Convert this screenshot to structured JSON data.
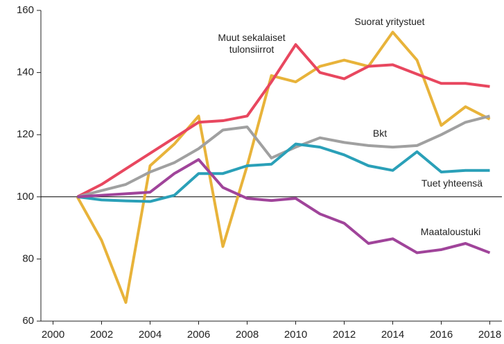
{
  "chart_data": {
    "type": "line",
    "x": [
      2001,
      2002,
      2003,
      2004,
      2005,
      2006,
      2007,
      2008,
      2009,
      2010,
      2011,
      2012,
      2013,
      2014,
      2015,
      2016,
      2017,
      2018
    ],
    "series": [
      {
        "name": "Suorat yritystuet",
        "color": "#e8b33a",
        "values": [
          100,
          86,
          66,
          110,
          117,
          126,
          84,
          110,
          139,
          137,
          142,
          144,
          142,
          153,
          144,
          123,
          129,
          125
        ]
      },
      {
        "name": "Muut sekalaiset tulonsiirrot",
        "color": "#e8475f",
        "values": [
          100,
          104,
          109,
          114,
          119,
          124,
          124.5,
          126,
          137,
          149,
          140,
          138,
          142,
          142.5,
          139.5,
          136.5,
          136.5,
          135.5
        ]
      },
      {
        "name": "Bkt",
        "color": "#a0a0a0",
        "values": [
          100,
          102,
          104,
          108,
          111,
          115.5,
          121.5,
          122.5,
          112.5,
          116,
          119,
          117.5,
          116.5,
          116,
          116.5,
          120,
          124,
          126
        ]
      },
      {
        "name": "Tuet yhteensä",
        "color": "#2aa0b8",
        "values": [
          100,
          99,
          98.7,
          98.5,
          100.5,
          107.5,
          107.5,
          110,
          110.5,
          117,
          116,
          113.5,
          110,
          108.5,
          114.5,
          108,
          108.5,
          108.5
        ]
      },
      {
        "name": "Maataloustuki",
        "color": "#a0449a",
        "values": [
          100,
          100.5,
          101,
          101.5,
          107.5,
          112,
          103,
          99.5,
          98.8,
          99.5,
          94.5,
          91.5,
          85,
          86.5,
          82,
          83,
          85,
          82
        ]
      }
    ],
    "xlim": [
      1999.5,
      2018.5
    ],
    "xticks": [
      2000,
      2002,
      2004,
      2006,
      2008,
      2010,
      2012,
      2014,
      2016,
      2018
    ],
    "ylim": [
      60,
      160
    ],
    "yticks": [
      60,
      80,
      100,
      120,
      140,
      160
    ],
    "reference_line": 100
  }
}
